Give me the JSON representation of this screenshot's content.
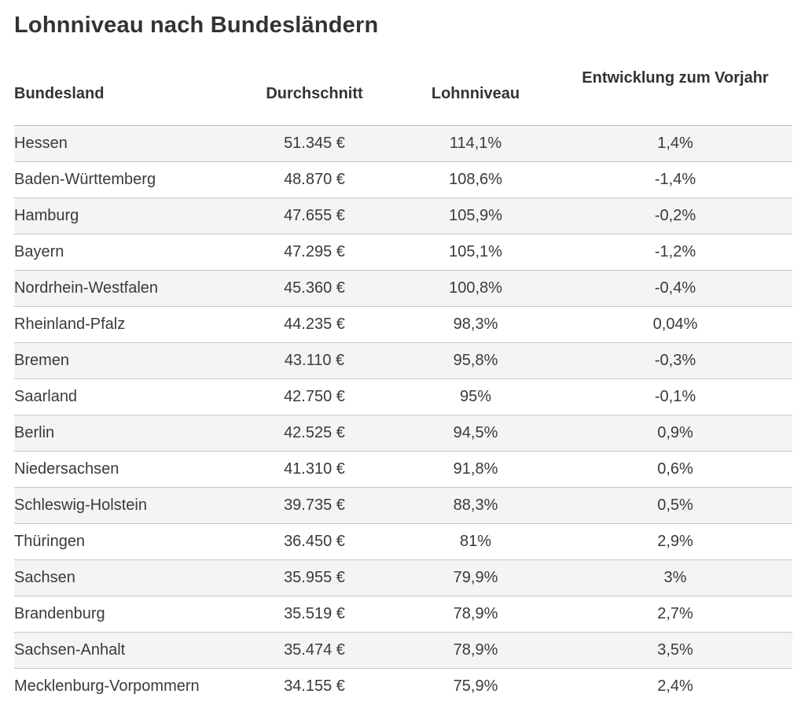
{
  "title": "Lohnniveau nach Bundesländern",
  "headers": [
    "Bundesland",
    "Durchschnitt",
    "Lohnniveau",
    "Entwicklung zum Vorjahr"
  ],
  "rows": [
    [
      "Hessen",
      "51.345 €",
      "114,1%",
      "1,4%"
    ],
    [
      "Baden-Württemberg",
      "48.870 €",
      "108,6%",
      "-1,4%"
    ],
    [
      "Hamburg",
      "47.655 €",
      "105,9%",
      "-0,2%"
    ],
    [
      "Bayern",
      "47.295 €",
      "105,1%",
      "-1,2%"
    ],
    [
      "Nordrhein-Westfalen",
      "45.360 €",
      "100,8%",
      "-0,4%"
    ],
    [
      "Rheinland-Pfalz",
      "44.235 €",
      "98,3%",
      "0,04%"
    ],
    [
      "Bremen",
      "43.110 €",
      "95,8%",
      "-0,3%"
    ],
    [
      "Saarland",
      "42.750 €",
      "95%",
      "-0,1%"
    ],
    [
      "Berlin",
      "42.525 €",
      "94,5%",
      "0,9%"
    ],
    [
      "Niedersachsen",
      "41.310 €",
      "91,8%",
      "0,6%"
    ],
    [
      "Schleswig-Holstein",
      "39.735 €",
      "88,3%",
      "0,5%"
    ],
    [
      "Thüringen",
      "36.450 €",
      "81%",
      "2,9%"
    ],
    [
      "Sachsen",
      "35.955 €",
      "79,9%",
      "3%"
    ],
    [
      "Brandenburg",
      "35.519 €",
      "78,9%",
      "2,7%"
    ],
    [
      "Sachsen-Anhalt",
      "35.474 €",
      "78,9%",
      "3,5%"
    ],
    [
      "Mecklenburg-Vorpommern",
      "34.155 €",
      "75,9%",
      "2,4%"
    ]
  ]
}
